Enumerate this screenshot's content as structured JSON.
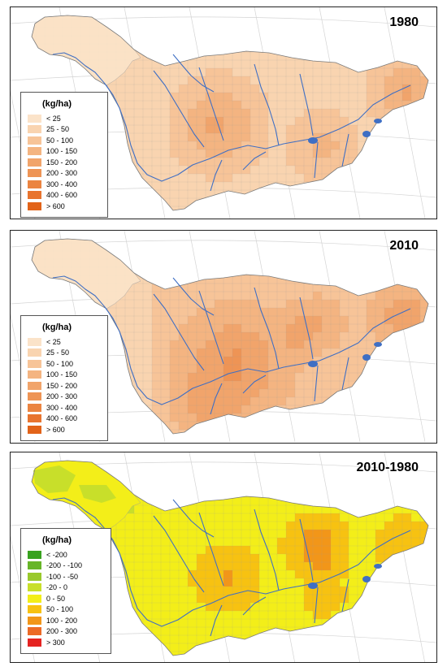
{
  "palette": {
    "water": "#3f6fc4",
    "border": "#9a9a9a",
    "grid": "#d4d4d4"
  },
  "panels": [
    {
      "title": "1980",
      "legend": {
        "unit": "(kg/ha)",
        "classes": [
          {
            "label": "< 25",
            "color": "#fbe3c9"
          },
          {
            "label": "25 - 50",
            "color": "#f9d4b0"
          },
          {
            "label": "50 - 100",
            "color": "#f7c498"
          },
          {
            "label": "100 - 150",
            "color": "#f4b481"
          },
          {
            "label": "150 - 200",
            "color": "#f1a46b"
          },
          {
            "label": "200 - 300",
            "color": "#ee9455"
          },
          {
            "label": "300 - 400",
            "color": "#eb8441"
          },
          {
            "label": "400 - 600",
            "color": "#e8742f"
          },
          {
            "label": "> 600",
            "color": "#e26319"
          }
        ]
      }
    },
    {
      "title": "2010",
      "legend": {
        "unit": "(kg/ha)",
        "classes": [
          {
            "label": "< 25",
            "color": "#fbe3c9"
          },
          {
            "label": "25 - 50",
            "color": "#f9d4b0"
          },
          {
            "label": "50 - 100",
            "color": "#f7c498"
          },
          {
            "label": "100 - 150",
            "color": "#f4b481"
          },
          {
            "label": "150 - 200",
            "color": "#f1a46b"
          },
          {
            "label": "200 - 300",
            "color": "#ee9455"
          },
          {
            "label": "300 - 400",
            "color": "#eb8441"
          },
          {
            "label": "400 - 600",
            "color": "#e8742f"
          },
          {
            "label": "> 600",
            "color": "#e26319"
          }
        ]
      }
    },
    {
      "title": "2010-1980",
      "legend": {
        "unit": "(kg/ha)",
        "classes": [
          {
            "label": "< -200",
            "color": "#38a21f"
          },
          {
            "label": "-200 - -100",
            "color": "#67b528"
          },
          {
            "label": "-100 - -50",
            "color": "#99c92c"
          },
          {
            "label": "-20 - 0",
            "color": "#c8df2a"
          },
          {
            "label": "0 - 50",
            "color": "#f3ee19"
          },
          {
            "label": "50 - 100",
            "color": "#f7c211"
          },
          {
            "label": "100 - 200",
            "color": "#f29619"
          },
          {
            "label": "200 - 300",
            "color": "#ec6a26"
          },
          {
            "label": "> 300",
            "color": "#e52321"
          }
        ]
      }
    }
  ]
}
